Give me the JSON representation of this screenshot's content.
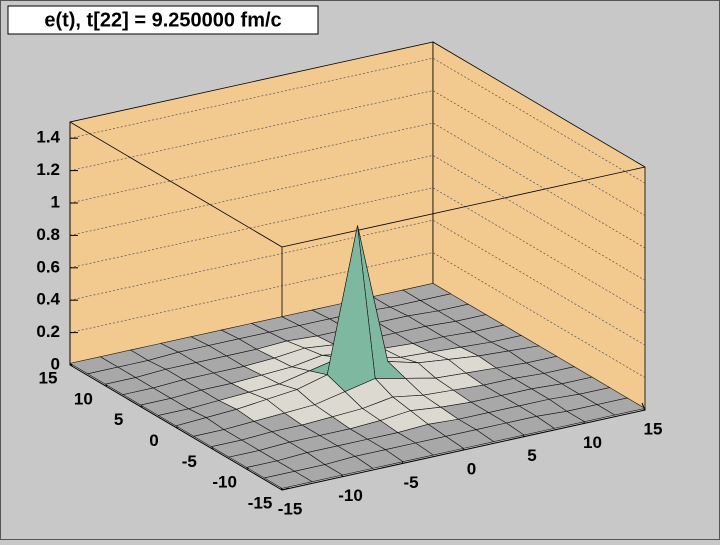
{
  "chart_data": {
    "type": "surface",
    "title": "e(t), t[22] = 9.250000 fm/c",
    "x": [
      -15,
      -12.5,
      -10,
      -7.5,
      -5,
      -2.5,
      0,
      2.5,
      5,
      7.5,
      10,
      12.5,
      15
    ],
    "y": [
      -15,
      -12.5,
      -10,
      -7.5,
      -5,
      -2.5,
      0,
      2.5,
      5,
      7.5,
      10,
      12.5,
      15
    ],
    "z": [
      [
        0.01,
        0.01,
        0.01,
        0.01,
        0.01,
        0.01,
        0.01,
        0.01,
        0.01,
        0.01,
        0.01,
        0.01,
        0.01
      ],
      [
        0.01,
        0.01,
        0.01,
        0.02,
        0.02,
        0.02,
        0.02,
        0.02,
        0.02,
        0.02,
        0.01,
        0.01,
        0.01
      ],
      [
        0.01,
        0.01,
        0.02,
        0.02,
        0.02,
        0.02,
        0.03,
        0.02,
        0.02,
        0.02,
        0.02,
        0.01,
        0.01
      ],
      [
        0.01,
        0.01,
        0.02,
        0.02,
        0.02,
        0.03,
        0.05,
        0.03,
        0.02,
        0.02,
        0.02,
        0.01,
        0.01
      ],
      [
        0.01,
        0.01,
        0.02,
        0.02,
        0.03,
        0.04,
        0.07,
        0.04,
        0.03,
        0.02,
        0.02,
        0.01,
        0.01
      ],
      [
        0.01,
        0.01,
        0.02,
        0.03,
        0.04,
        0.08,
        0.12,
        0.08,
        0.04,
        0.03,
        0.02,
        0.01,
        0.01
      ],
      [
        0.01,
        0.02,
        0.03,
        0.05,
        0.07,
        0.12,
        1.0,
        0.12,
        0.07,
        0.05,
        0.03,
        0.02,
        0.01
      ],
      [
        0.01,
        0.01,
        0.02,
        0.03,
        0.04,
        0.08,
        0.12,
        0.08,
        0.04,
        0.03,
        0.02,
        0.01,
        0.01
      ],
      [
        0.01,
        0.01,
        0.02,
        0.02,
        0.03,
        0.04,
        0.07,
        0.04,
        0.03,
        0.02,
        0.02,
        0.01,
        0.01
      ],
      [
        0.01,
        0.01,
        0.02,
        0.02,
        0.02,
        0.03,
        0.05,
        0.03,
        0.02,
        0.02,
        0.02,
        0.01,
        0.01
      ],
      [
        0.01,
        0.01,
        0.02,
        0.02,
        0.02,
        0.02,
        0.03,
        0.02,
        0.02,
        0.02,
        0.02,
        0.01,
        0.01
      ],
      [
        0.01,
        0.01,
        0.01,
        0.02,
        0.02,
        0.02,
        0.02,
        0.02,
        0.02,
        0.02,
        0.01,
        0.01,
        0.01
      ],
      [
        0.01,
        0.01,
        0.01,
        0.01,
        0.01,
        0.01,
        0.01,
        0.01,
        0.01,
        0.01,
        0.01,
        0.01,
        0.01
      ]
    ],
    "xlim": [
      -15,
      15
    ],
    "ylim": [
      -15,
      15
    ],
    "zlim": [
      0,
      1.5
    ],
    "xticks": [
      -15,
      -10,
      -5,
      0,
      5,
      10,
      15
    ],
    "yticks": [
      -15,
      -10,
      -5,
      0,
      5,
      10,
      15
    ],
    "zticks": [
      0,
      0.2,
      0.4,
      0.6,
      0.8,
      1,
      1.2,
      1.4
    ],
    "wall_color": "#f2c98f",
    "palette": [
      "#a8a8a8",
      "#dcdad0",
      "#f0eedc",
      "#8a6a58",
      "#7fb8a0",
      "#8a94a8",
      "#b8c0cc",
      "#d01010"
    ]
  }
}
